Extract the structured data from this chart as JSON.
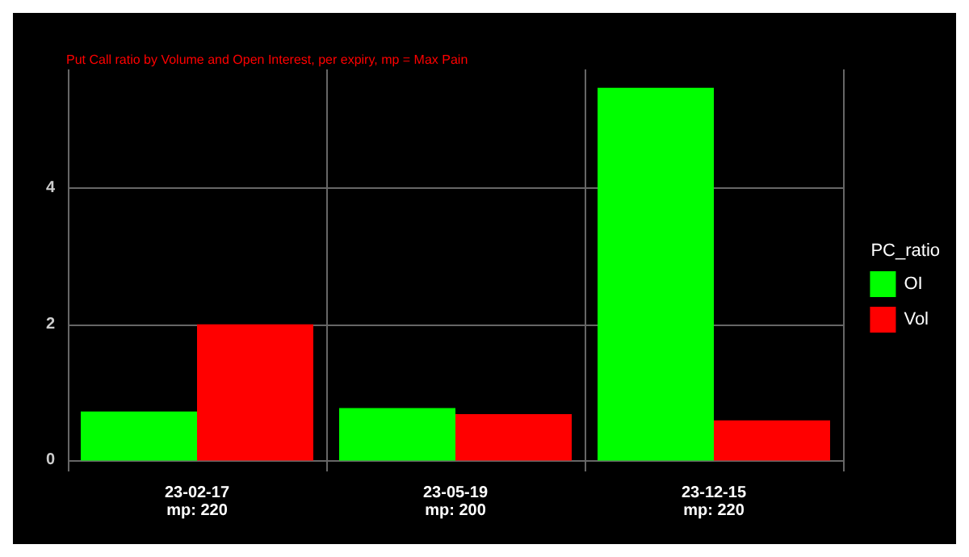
{
  "chart_data": {
    "type": "bar",
    "subtitle": "Put Call ratio by Volume and Open Interest, per expiry, mp = Max Pain",
    "categories": [
      "23-02-17\nmp: 220",
      "23-05-19\nmp: 200",
      "23-12-15\nmp: 220"
    ],
    "legend_title": "PC_ratio",
    "series": [
      {
        "name": "OI",
        "color": "#00ff00",
        "values": [
          0.72,
          0.77,
          5.47
        ]
      },
      {
        "name": "Vol",
        "color": "#ff0000",
        "values": [
          2.0,
          0.68,
          0.59
        ]
      }
    ],
    "ylim": [
      -0.16,
      5.74
    ],
    "yticks": [
      0,
      2,
      4
    ],
    "grid": true,
    "legend": "right"
  }
}
